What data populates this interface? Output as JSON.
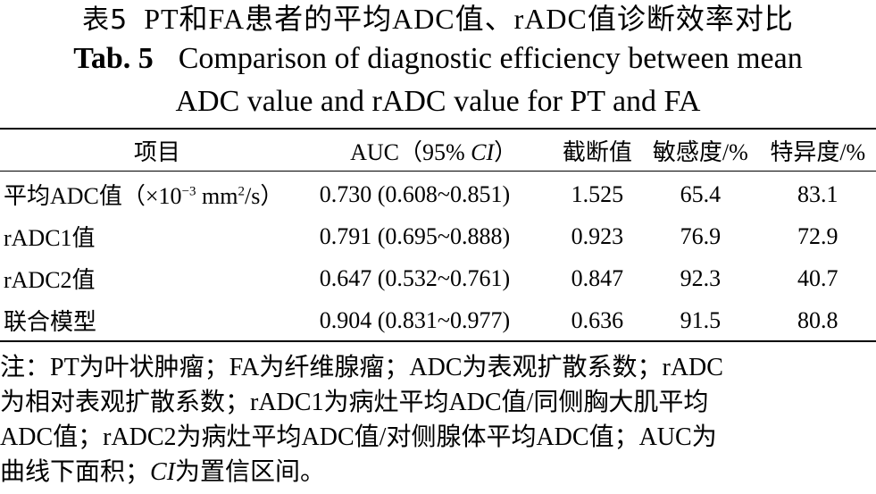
{
  "table_title": {
    "cn_number": "表5",
    "cn_title": "PT和FA患者的平均ADC值、rADC值诊断效率对比",
    "en_number": "Tab. 5",
    "en_title_line1": "Comparison of diagnostic efficiency between mean",
    "en_title_line2": "ADC value and rADC value for PT and FA"
  },
  "table": {
    "headers": {
      "item": "项目",
      "auc_prefix": "AUC（95% ",
      "auc_ci": "CI",
      "auc_suffix": "）",
      "cutoff": "截断值",
      "sensitivity": "敏感度/%",
      "specificity": "特异度/%"
    },
    "rows": [
      {
        "item_prefix": "平均ADC值（×10",
        "item_sup1": "−3",
        "item_mid": " mm",
        "item_sup2": "2",
        "item_suffix": "/s）",
        "auc": "0.730 (0.608~0.851)",
        "cutoff": "1.525",
        "sensitivity": "65.4",
        "specificity": "83.1"
      },
      {
        "item": "rADC1值",
        "auc": "0.791 (0.695~0.888)",
        "cutoff": "0.923",
        "sensitivity": "76.9",
        "specificity": "72.9"
      },
      {
        "item": "rADC2值",
        "auc": "0.647 (0.532~0.761)",
        "cutoff": "0.847",
        "sensitivity": "92.3",
        "specificity": "40.7"
      },
      {
        "item": "联合模型",
        "auc": "0.904 (0.831~0.977)",
        "cutoff": "0.636",
        "sensitivity": "91.5",
        "specificity": "80.8"
      }
    ]
  },
  "note": {
    "line1": "注：PT为叶状肿瘤；FA为纤维腺瘤；ADC为表观扩散系数；rADC",
    "line2": "为相对表观扩散系数；rADC1为病灶平均ADC值/同侧胸大肌平均",
    "line3": "ADC值；rADC2为病灶平均ADC值/对侧腺体平均ADC值；AUC为",
    "line4_prefix": "曲线下面积；",
    "line4_ci": "CI",
    "line4_suffix": "为置信区间。"
  }
}
